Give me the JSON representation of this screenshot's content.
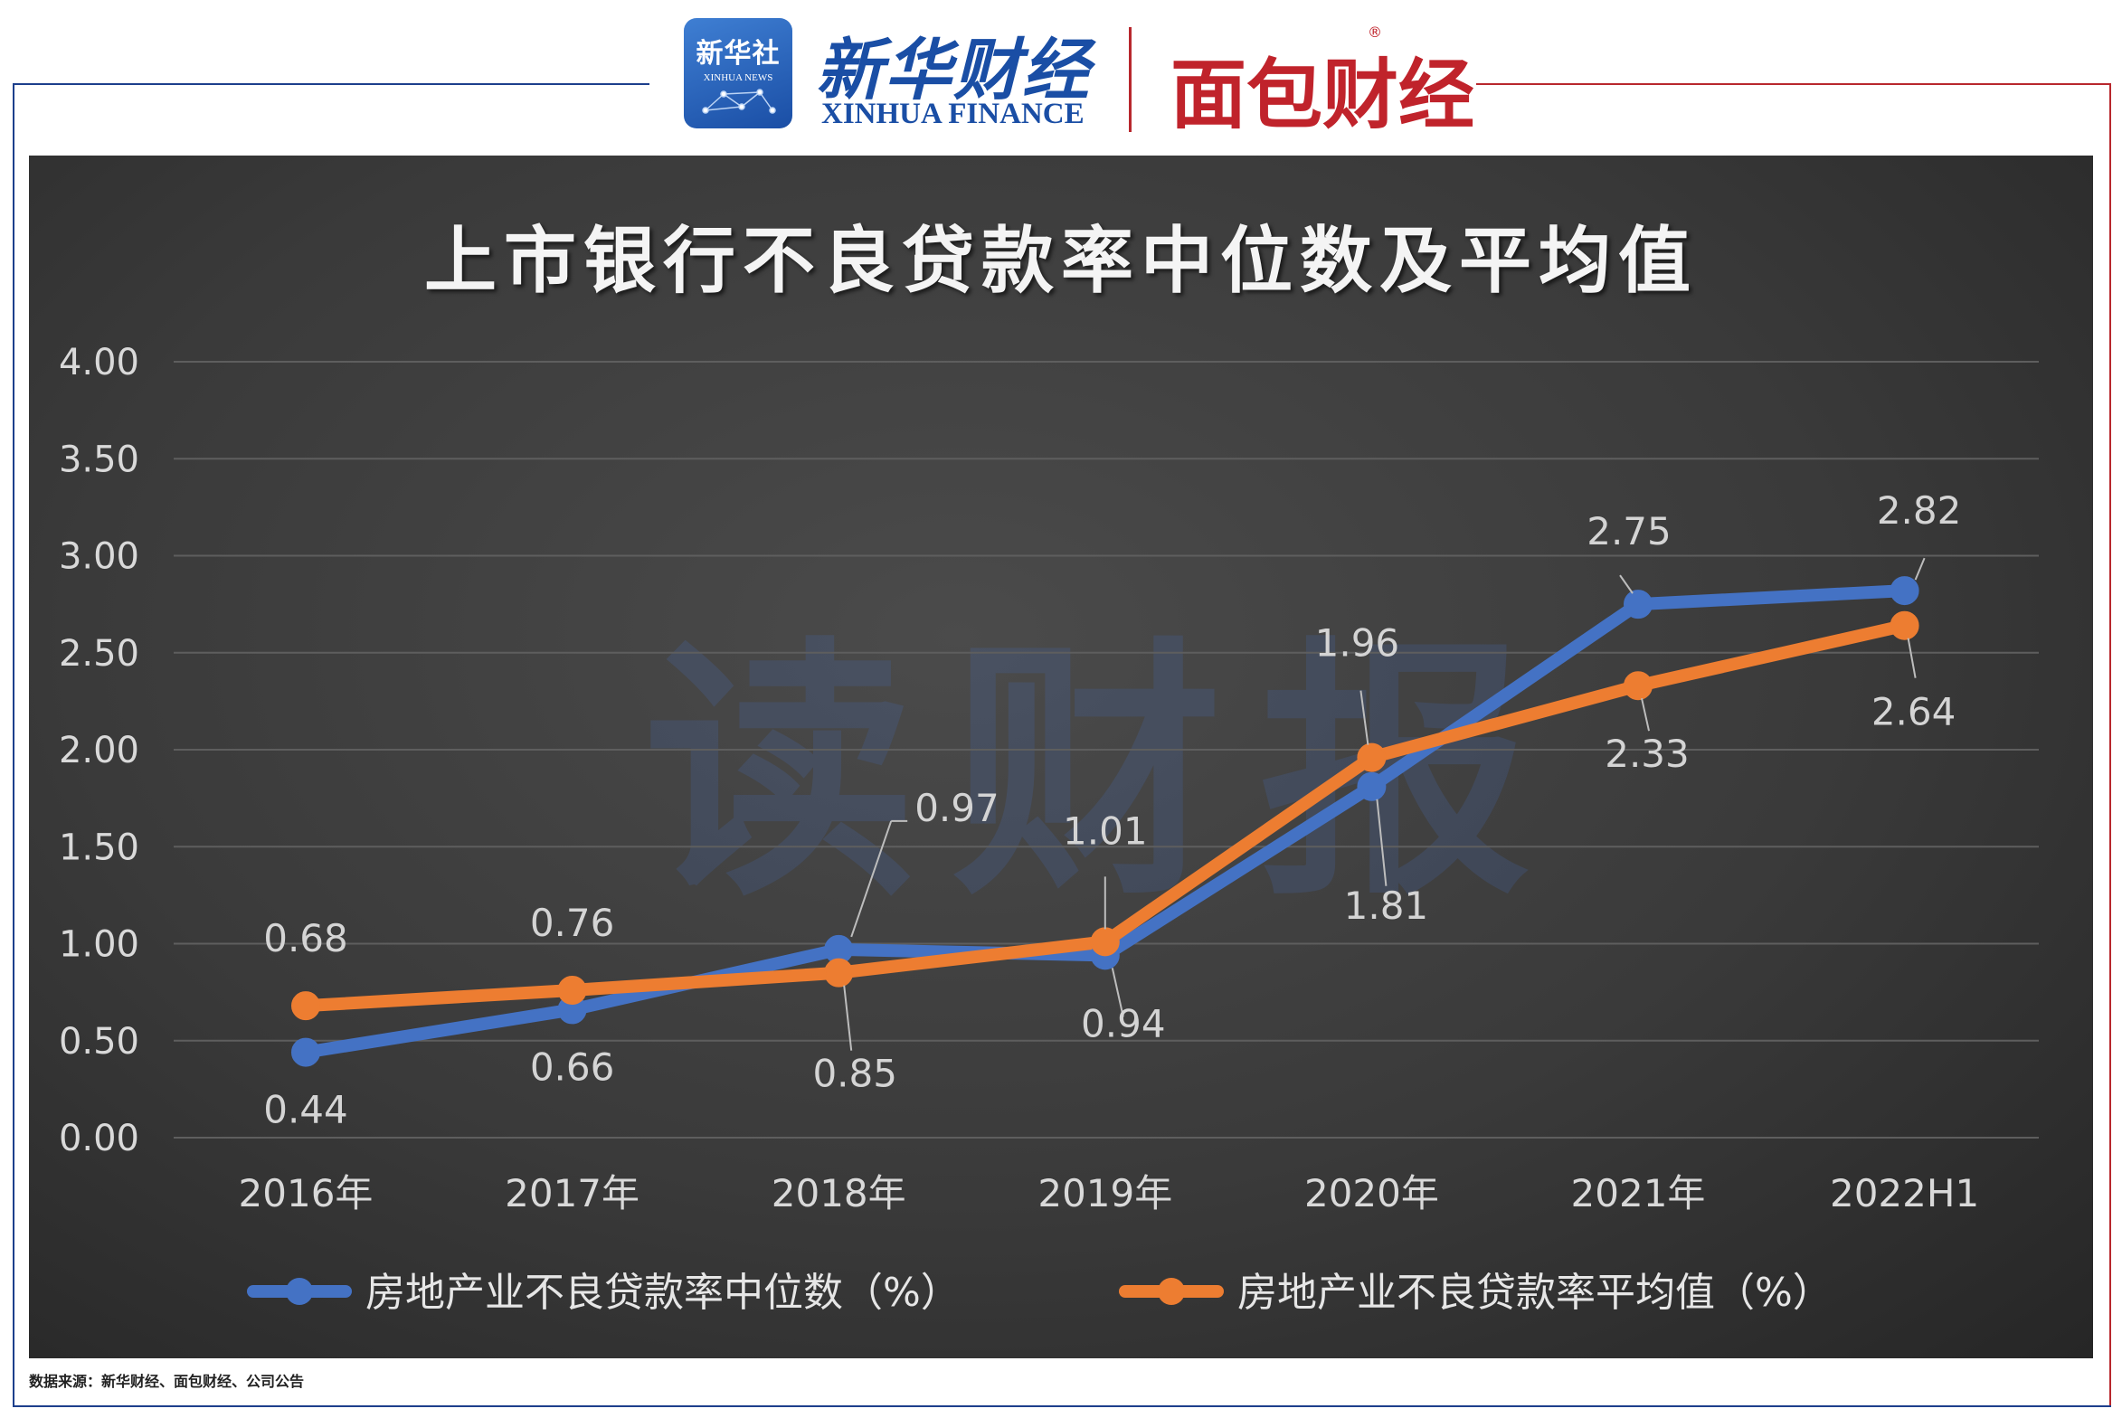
{
  "header": {
    "xinhua_badge_cn": "新华社",
    "xinhua_badge_en": "XINHUA NEWS",
    "xinhua_finance_cn": "新华财经",
    "xinhua_finance_en": "XINHUA FINANCE",
    "partner_logo": "面包财经",
    "registered_mark": "®"
  },
  "watermark": "读财报",
  "source_note": "数据来源：新华财经、面包财经、公司公告",
  "colors": {
    "median": "#4472c4",
    "average": "#ed7d31",
    "panel_bg": "#3a3a3a",
    "brand_blue": "#1a4ea5",
    "brand_red": "#c0232b"
  },
  "chart_data": {
    "type": "line",
    "title": "上市银行不良贷款率中位数及平均值",
    "categories": [
      "2016年",
      "2017年",
      "2018年",
      "2019年",
      "2020年",
      "2021年",
      "2022H1"
    ],
    "yticks": [
      "0.00",
      "0.50",
      "1.00",
      "1.50",
      "2.00",
      "2.50",
      "3.00",
      "3.50",
      "4.00"
    ],
    "ylim": [
      0,
      4
    ],
    "grid": true,
    "legend_position": "bottom",
    "series": [
      {
        "name": "房地产业不良贷款率中位数（%）",
        "values": [
          0.44,
          0.66,
          0.97,
          0.94,
          1.81,
          2.75,
          2.82
        ],
        "labels": [
          "0.44",
          "0.66",
          "0.97",
          "0.94",
          "1.81",
          "2.75",
          "2.82"
        ]
      },
      {
        "name": "房地产业不良贷款率平均值（%）",
        "values": [
          0.68,
          0.76,
          0.85,
          1.01,
          1.96,
          2.33,
          2.64
        ],
        "labels": [
          "0.68",
          "0.76",
          "0.85",
          "1.01",
          "1.96",
          "2.33",
          "2.64"
        ]
      }
    ]
  }
}
